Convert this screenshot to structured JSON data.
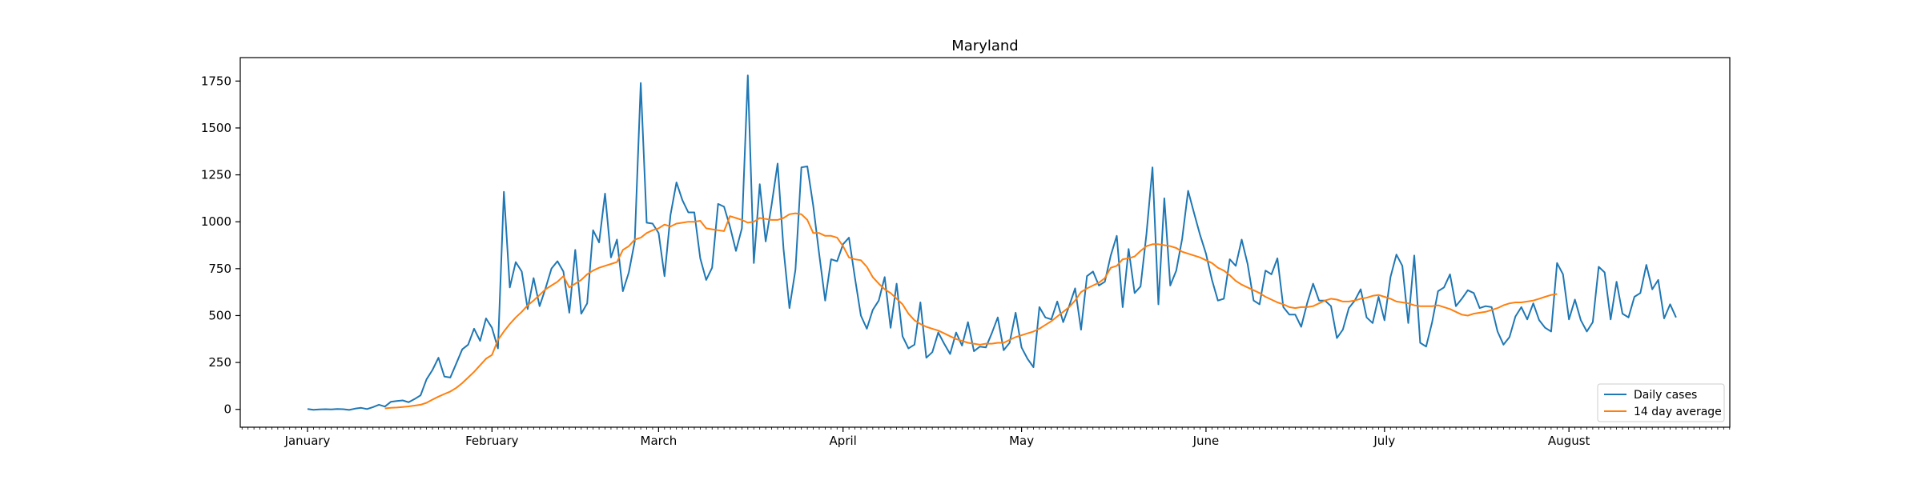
{
  "chart_data": {
    "type": "line",
    "title": "Maryland",
    "xlabel": "",
    "ylabel": "",
    "x_ticks": [
      "January",
      "February",
      "March",
      "April",
      "May",
      "June",
      "July",
      "August"
    ],
    "yticks": [
      0,
      250,
      500,
      750,
      1000,
      1250,
      1500,
      1750
    ],
    "ylim": [
      -95,
      1875
    ],
    "legend_position": "lower right",
    "grid": false,
    "series": [
      {
        "name": "Daily cases",
        "color": "#1f77b4",
        "start_day": 0,
        "values": [
          2,
          -2,
          0,
          1,
          0,
          2,
          1,
          -3,
          4,
          8,
          2,
          12,
          25,
          15,
          40,
          45,
          48,
          38,
          55,
          75,
          160,
          210,
          275,
          175,
          170,
          245,
          320,
          345,
          430,
          365,
          485,
          435,
          325,
          1160,
          650,
          785,
          735,
          535,
          700,
          550,
          645,
          750,
          790,
          735,
          515,
          850,
          510,
          565,
          955,
          890,
          1150,
          810,
          905,
          630,
          730,
          895,
          1740,
          995,
          990,
          940,
          710,
          1035,
          1210,
          1115,
          1050,
          1050,
          805,
          690,
          755,
          1095,
          1080,
          975,
          845,
          965,
          1780,
          780,
          1200,
          895,
          1090,
          1310,
          855,
          540,
          745,
          1290,
          1295,
          1085,
          825,
          580,
          800,
          790,
          880,
          915,
          700,
          500,
          430,
          530,
          580,
          705,
          435,
          670,
          390,
          325,
          345,
          570,
          275,
          305,
          410,
          350,
          295,
          410,
          340,
          465,
          310,
          335,
          330,
          405,
          490,
          315,
          355,
          515,
          330,
          270,
          225,
          545,
          490,
          480,
          575,
          465,
          550,
          645,
          425,
          710,
          735,
          660,
          680,
          820,
          925,
          545,
          855,
          620,
          655,
          935,
          1290,
          560,
          1125,
          660,
          740,
          910,
          1165,
          1045,
          930,
          830,
          690,
          580,
          590,
          800,
          765,
          905,
          775,
          580,
          560,
          740,
          720,
          805,
          545,
          505,
          505,
          440,
          565,
          670,
          580,
          580,
          550,
          380,
          425,
          540,
          580,
          640,
          490,
          460,
          600,
          475,
          705,
          825,
          765,
          460,
          820,
          355,
          335,
          465,
          630,
          650,
          720,
          550,
          590,
          635,
          620,
          540,
          550,
          545,
          415,
          345,
          385,
          495,
          545,
          480,
          565,
          475,
          435,
          415,
          780,
          720,
          480,
          585,
          475,
          415,
          465,
          760,
          730,
          480,
          680,
          510,
          490,
          600,
          620,
          770,
          640,
          690,
          485,
          560,
          490
        ]
      },
      {
        "name": "14 day average",
        "color": "#ff7f0e",
        "start_day": 13,
        "values": [
          5,
          8,
          10,
          13,
          16,
          20,
          25,
          35,
          52,
          68,
          82,
          95,
          115,
          140,
          170,
          200,
          235,
          270,
          290,
          370,
          415,
          455,
          490,
          520,
          555,
          580,
          610,
          640,
          660,
          680,
          710,
          650,
          670,
          690,
          720,
          740,
          755,
          765,
          775,
          785,
          850,
          870,
          905,
          915,
          940,
          955,
          965,
          985,
          975,
          990,
          995,
          1000,
          1000,
          1005,
          965,
          960,
          955,
          950,
          1030,
          1020,
          1010,
          995,
          1000,
          1020,
          1015,
          1010,
          1010,
          1020,
          1040,
          1045,
          1040,
          1010,
          940,
          940,
          925,
          925,
          915,
          870,
          810,
          800,
          795,
          760,
          705,
          670,
          640,
          620,
          590,
          560,
          510,
          475,
          455,
          440,
          430,
          420,
          405,
          390,
          375,
          365,
          355,
          350,
          345,
          350,
          350,
          355,
          355,
          370,
          385,
          395,
          405,
          415,
          430,
          450,
          470,
          495,
          520,
          545,
          580,
          625,
          645,
          660,
          675,
          700,
          755,
          765,
          800,
          805,
          815,
          845,
          870,
          880,
          880,
          875,
          870,
          860,
          840,
          830,
          820,
          810,
          795,
          780,
          755,
          740,
          715,
          685,
          665,
          650,
          635,
          620,
          600,
          585,
          570,
          560,
          545,
          540,
          545,
          545,
          550,
          565,
          580,
          590,
          585,
          575,
          575,
          580,
          590,
          595,
          605,
          610,
          600,
          590,
          575,
          570,
          565,
          555,
          550,
          550,
          550,
          555,
          545,
          535,
          520,
          505,
          500,
          510,
          515,
          520,
          530,
          540,
          555,
          565,
          570,
          570,
          575,
          580,
          590,
          600,
          610,
          615
        ]
      }
    ]
  }
}
